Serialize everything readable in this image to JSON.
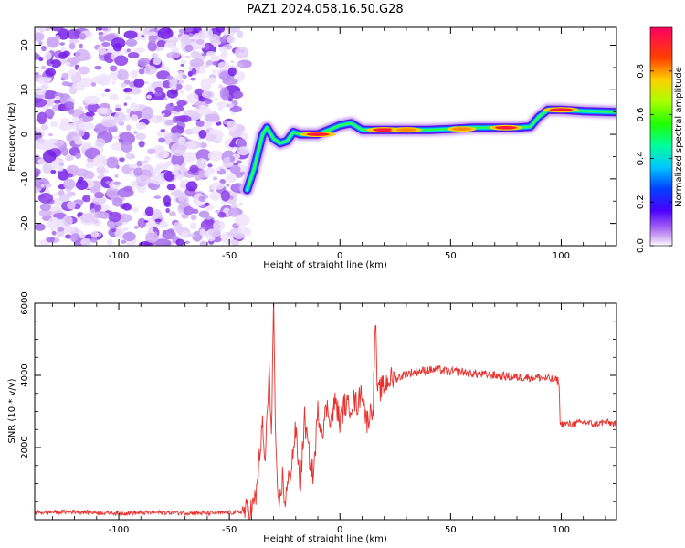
{
  "title": "PAZ1.2024.058.16.50.G28",
  "chart_data": [
    {
      "type": "heatmap",
      "xlabel": "Height of straight line (km)",
      "ylabel": "Frequency (Hz)",
      "xlim": [
        -138,
        125
      ],
      "ylim": [
        -25,
        24
      ],
      "xticks": [
        -100,
        -50,
        0,
        50,
        100
      ],
      "yticks": [
        -20,
        -10,
        0,
        10,
        20
      ],
      "colorbar": {
        "label": "Normalized spectral amplitude",
        "range": [
          0,
          1
        ],
        "ticks": [
          0.0,
          0.2,
          0.4,
          0.6,
          0.8
        ],
        "colors": [
          "#ffffff",
          "#c8a0f0",
          "#7a18e8",
          "#3a00ff",
          "#0050ff",
          "#00d8ff",
          "#00ff90",
          "#30ff00",
          "#c8ff00",
          "#ffb000",
          "#ff3000",
          "#ff0060"
        ]
      },
      "noise_region_x": [
        -138,
        -43
      ],
      "ridge": [
        {
          "x": -42,
          "y": -12.5
        },
        {
          "x": -39,
          "y": -8
        },
        {
          "x": -37,
          "y": -4
        },
        {
          "x": -35,
          "y": 0
        },
        {
          "x": -33,
          "y": 1.5
        },
        {
          "x": -30,
          "y": -1
        },
        {
          "x": -27,
          "y": -2
        },
        {
          "x": -24,
          "y": -1.5
        },
        {
          "x": -21,
          "y": 0.5
        },
        {
          "x": -18,
          "y": 0
        },
        {
          "x": -15,
          "y": 0
        },
        {
          "x": -10,
          "y": 0
        },
        {
          "x": -5,
          "y": 1
        },
        {
          "x": 0,
          "y": 2
        },
        {
          "x": 5,
          "y": 2.5
        },
        {
          "x": 10,
          "y": 1
        },
        {
          "x": 20,
          "y": 1
        },
        {
          "x": 30,
          "y": 1
        },
        {
          "x": 40,
          "y": 1
        },
        {
          "x": 50,
          "y": 1.2
        },
        {
          "x": 60,
          "y": 1.5
        },
        {
          "x": 70,
          "y": 1.5
        },
        {
          "x": 80,
          "y": 1.5
        },
        {
          "x": 86,
          "y": 1.7
        },
        {
          "x": 90,
          "y": 4
        },
        {
          "x": 94,
          "y": 5.5
        },
        {
          "x": 100,
          "y": 5.5
        },
        {
          "x": 110,
          "y": 5.2
        },
        {
          "x": 125,
          "y": 5
        }
      ],
      "ridge_hotspots": [
        {
          "x": -10,
          "y": 0,
          "amp": 0.95
        },
        {
          "x": 20,
          "y": 1,
          "amp": 0.95
        },
        {
          "x": 30,
          "y": 1,
          "amp": 0.7
        },
        {
          "x": 55,
          "y": 1.2,
          "amp": 0.6
        },
        {
          "x": 75,
          "y": 1.5,
          "amp": 0.85
        },
        {
          "x": 100,
          "y": 5.5,
          "amp": 0.95
        }
      ]
    },
    {
      "type": "line",
      "xlabel": "Height of straight line (km)",
      "ylabel": "SNR (10 * v/v)",
      "xlim": [
        -138,
        125
      ],
      "ylim": [
        0,
        6000
      ],
      "xticks": [
        -100,
        -50,
        0,
        50,
        100
      ],
      "yticks": [
        2000,
        4000,
        6000
      ],
      "series": [
        {
          "color": "#e8302c",
          "x": [
            -138,
            -120,
            -100,
            -80,
            -60,
            -50,
            -46,
            -43,
            -40,
            -38,
            -36,
            -35,
            -34,
            -33,
            -32,
            -31,
            -30,
            -29,
            -28,
            -27,
            -26,
            -25,
            -24,
            -22,
            -20,
            -18,
            -16,
            -14,
            -12,
            -10,
            -8,
            -6,
            -4,
            -2,
            0,
            2,
            4,
            6,
            8,
            10,
            12,
            14,
            15,
            16,
            17,
            18,
            20,
            22,
            25,
            30,
            35,
            40,
            45,
            50,
            55,
            60,
            70,
            80,
            90,
            95,
            99,
            99.5,
            100,
            105,
            110,
            115,
            120,
            125
          ],
          "y": [
            200,
            220,
            180,
            200,
            180,
            200,
            200,
            250,
            300,
            600,
            2000,
            2600,
            1500,
            2800,
            4000,
            2500,
            6000,
            1800,
            300,
            600,
            1200,
            500,
            800,
            1500,
            2500,
            900,
            2800,
            1800,
            1200,
            3000,
            2500,
            3100,
            2800,
            3300,
            2700,
            3200,
            3100,
            3300,
            3200,
            3600,
            2700,
            3000,
            3200,
            5600,
            3400,
            3600,
            3700,
            3900,
            3900,
            4050,
            4100,
            4150,
            4150,
            4100,
            4100,
            4050,
            4000,
            3950,
            3950,
            3900,
            3850,
            2700,
            2650,
            2650,
            2700,
            2650,
            2700,
            2650
          ]
        }
      ]
    }
  ]
}
